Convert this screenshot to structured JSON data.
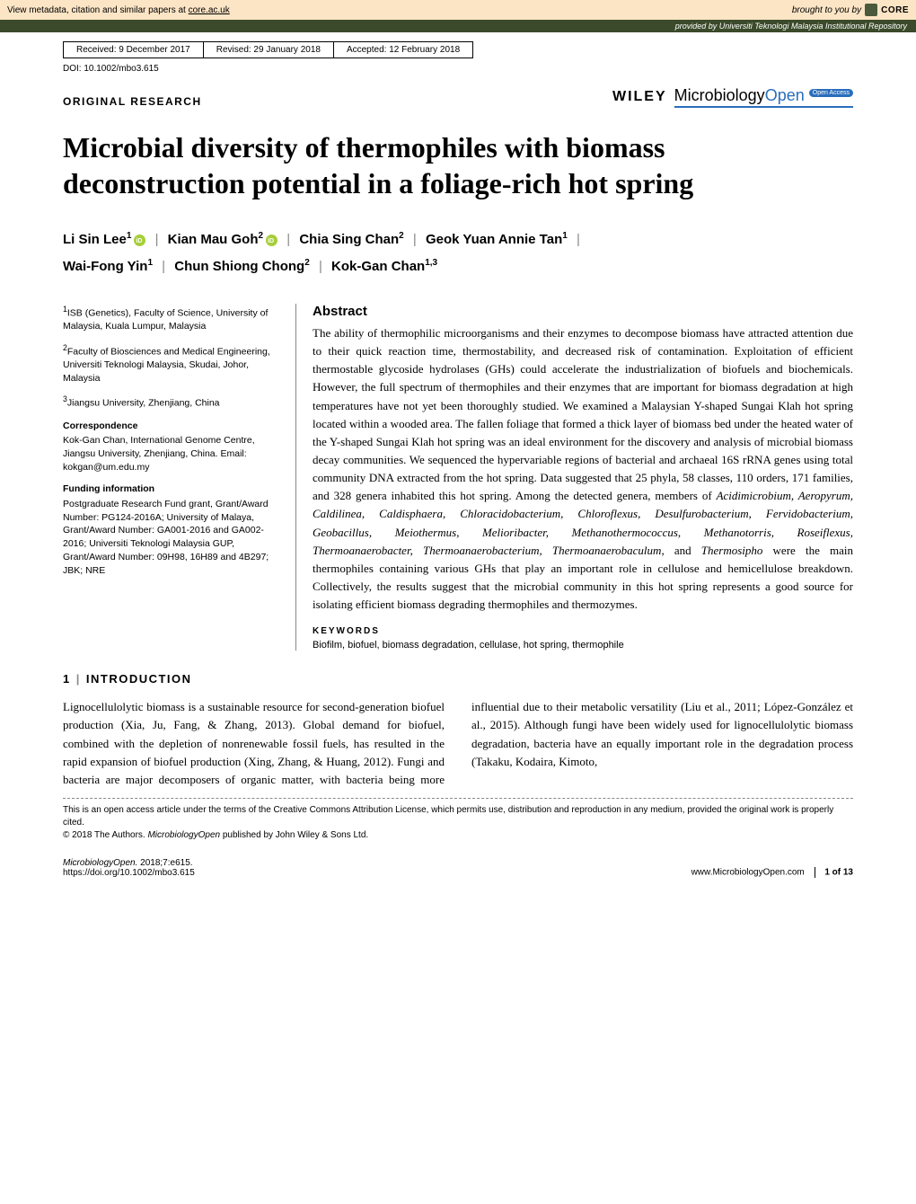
{
  "core_banner": {
    "left_prefix": "View metadata, citation and similar papers at ",
    "left_link": "core.ac.uk",
    "right_prefix": "brought to you by ",
    "logo_text": "CORE"
  },
  "provided_bar": {
    "prefix": "provided by ",
    "text": "Universiti Teknologi Malaysia Institutional Repository"
  },
  "dateline": {
    "received": "Received: 9 December 2017",
    "revised": "Revised: 29 January 2018",
    "accepted": "Accepted: 12 February 2018"
  },
  "doi": "DOI: 10.1002/mbo3.615",
  "article_type": "ORIGINAL RESEARCH",
  "publisher": "WILEY",
  "journal_part1": "Microbiology",
  "journal_part2": "Open",
  "oa_badge": "Open Access",
  "title": "Microbial diversity of thermophiles with biomass deconstruction potential in a foliage-rich hot spring",
  "authors": {
    "a1": "Li Sin Lee",
    "a1_aff": "1",
    "a2": "Kian Mau Goh",
    "a2_aff": "2",
    "a3": "Chia Sing Chan",
    "a3_aff": "2",
    "a4": "Geok Yuan Annie Tan",
    "a4_aff": "1",
    "a5": "Wai-Fong Yin",
    "a5_aff": "1",
    "a6": "Chun Shiong Chong",
    "a6_aff": "2",
    "a7": "Kok-Gan Chan",
    "a7_aff": "1,3"
  },
  "affiliations": {
    "aff1_sup": "1",
    "aff1": "ISB (Genetics), Faculty of Science, University of Malaysia, Kuala Lumpur, Malaysia",
    "aff2_sup": "2",
    "aff2": "Faculty of Biosciences and Medical Engineering, Universiti Teknologi Malaysia, Skudai, Johor, Malaysia",
    "aff3_sup": "3",
    "aff3": "Jiangsu University, Zhenjiang, China"
  },
  "correspondence_head": "Correspondence",
  "correspondence": "Kok-Gan Chan, International Genome Centre, Jiangsu University, Zhenjiang, China. Email: kokgan@um.edu.my",
  "funding_head": "Funding information",
  "funding": "Postgraduate Research Fund grant, Grant/Award Number: PG124-2016A; University of Malaya, Grant/Award Number: GA001-2016 and GA002-2016; Universiti Teknologi Malaysia GUP, Grant/Award Number: 09H98, 16H89 and 4B297; JBK; NRE",
  "abstract_head": "Abstract",
  "abstract_p1": "The ability of thermophilic microorganisms and their enzymes to decompose biomass have attracted attention due to their quick reaction time, thermostability, and decreased risk of contamination. Exploitation of efficient thermostable glycoside hydrolases (GHs) could accelerate the industrialization of biofuels and biochemicals. However, the full spectrum of thermophiles and their enzymes that are important for biomass degradation at high temperatures have not yet been thoroughly studied. We examined a Malaysian Y-shaped Sungai Klah hot spring located within a wooded area. The fallen foliage that formed a thick layer of biomass bed under the heated water of the Y-shaped Sungai Klah hot spring was an ideal environment for the discovery and analysis of microbial biomass decay communities. We sequenced the hypervariable regions of bacterial and archaeal 16S rRNA genes using total community DNA extracted from the hot spring. Data suggested that 25 phyla, 58 classes, 110 orders, 171 families, and 328 genera inhabited this hot spring. Among the detected genera, members of ",
  "abstract_genera": "Acidimicrobium, Aeropyrum, Caldilinea, Caldisphaera, Chloracidobacterium, Chloroflexus, Desulfurobacterium, Fervidobacterium, Geobacillus, Meiothermus, Melioribacter, Methanothermococcus, Methanotorris, Roseiflexus, Thermoanaerobacter, Thermoanaerobacterium, Thermoanaerobaculum",
  "abstract_and": ", and ",
  "abstract_last_genus": "Thermosipho",
  "abstract_p2": " were the main thermophiles containing various GHs that play an important role in cellulose and hemicellulose breakdown. Collectively, the results suggest that the microbial community in this hot spring represents a good source for isolating efficient biomass degrading thermophiles and thermozymes.",
  "keywords_head": "KEYWORDS",
  "keywords": "Biofilm, biofuel, biomass degradation, cellulase, hot spring, thermophile",
  "section1_num": "1",
  "section1_title": "INTRODUCTION",
  "intro_col1": "Lignocellulolytic biomass is a sustainable resource for second-generation biofuel production (Xia, Ju, Fang, & Zhang, 2013). Global demand for biofuel, combined with the depletion of nonrenewable fossil fuels, has resulted in the rapid expansion of biofuel",
  "intro_col2": "production (Xing, Zhang, & Huang, 2012). Fungi and bacteria are major decomposers of organic matter, with bacteria being more influential due to their metabolic versatility (Liu et al., 2011; López-González et al., 2015). Although fungi have been widely used for lignocellulolytic biomass degradation, bacteria have an equally important role in the degradation process (Takaku, Kodaira, Kimoto,",
  "license1": "This is an open access article under the terms of the Creative Commons Attribution License, which permits use, distribution and reproduction in any medium, provided the original work is properly cited.",
  "license2_prefix": "© 2018 The Authors. ",
  "license2_journal": "MicrobiologyOpen",
  "license2_suffix": " published by John Wiley & Sons Ltd.",
  "footer": {
    "citation_journal": "MicrobiologyOpen.",
    "citation_rest": " 2018;7:e615.",
    "doi_url": "https://doi.org/10.1002/mbo3.615",
    "site": "www.MicrobiologyOpen.com",
    "page": "1 of 13"
  },
  "colors": {
    "core_bg": "#fce5c5",
    "provided_bg": "#3a4a2a",
    "wiley_blue": "#2a6ebb",
    "orcid_green": "#a6ce39"
  }
}
